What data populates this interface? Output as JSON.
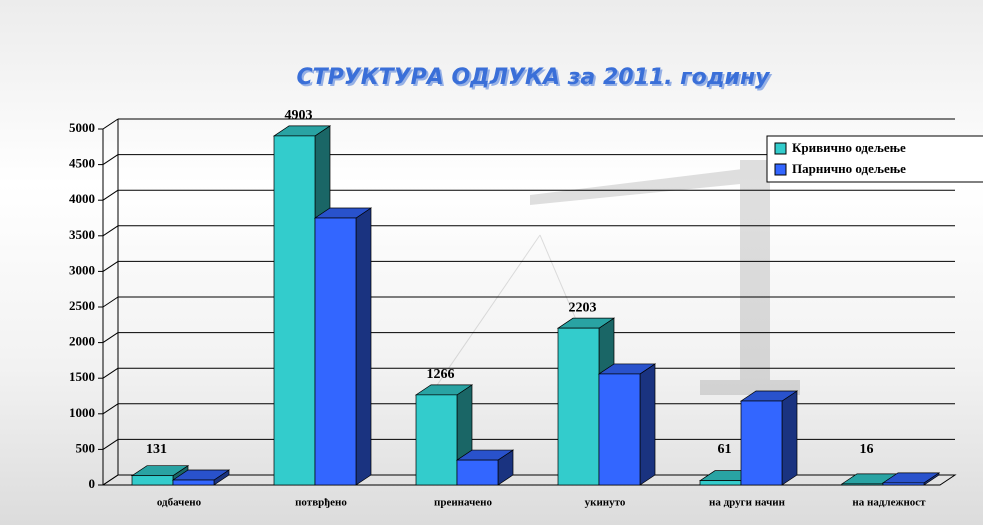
{
  "chart_data": {
    "type": "bar3d",
    "title": "СТРУКТУРА ОДЛУКА за 2011. годину",
    "categories": [
      "одбачено",
      "потврђено",
      "преиначено",
      "укинуто",
      "на други начин",
      "на надлежност"
    ],
    "series": [
      {
        "name": "Кривично одељење",
        "color": "#33cccc",
        "values": [
          131,
          4903,
          1266,
          2203,
          61,
          16
        ]
      },
      {
        "name": "Парнично одељење",
        "color": "#3366ff",
        "values": [
          70,
          3750,
          350,
          1560,
          1180,
          30
        ]
      }
    ],
    "ylim": [
      0,
      5000
    ],
    "yticks": [
      0,
      500,
      1000,
      1500,
      2000,
      2500,
      3000,
      3500,
      4000,
      4500,
      5000
    ],
    "grid": true,
    "legend": "top-right"
  }
}
